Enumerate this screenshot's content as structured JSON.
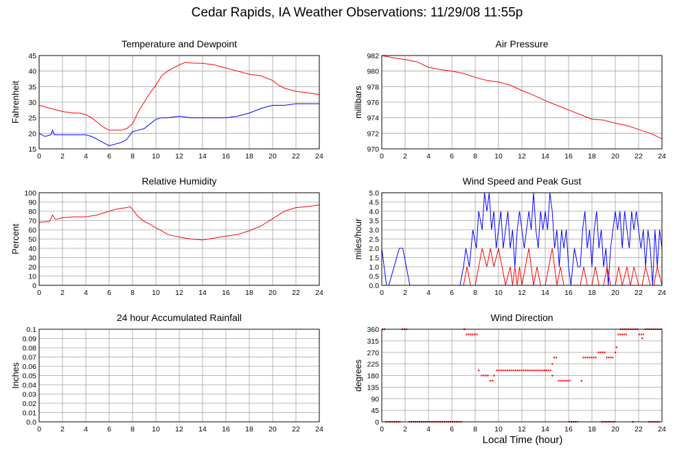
{
  "page": {
    "title": "Cedar Rapids, IA Weather Observations: 11/29/08 11:55p",
    "x_axis_title": "Local Time (hour)"
  },
  "colors": {
    "red": "#ff0000",
    "blue": "#0000ff",
    "grid": "#a0a0a0",
    "axis": "#000000"
  },
  "chart_data": [
    {
      "id": "temp",
      "type": "line",
      "title": "Temperature and Dewpoint",
      "ylabel": "Fahrenheit",
      "xlim": [
        0,
        24
      ],
      "ylim": [
        15,
        45
      ],
      "xticks": [
        0,
        2,
        4,
        6,
        8,
        10,
        12,
        14,
        16,
        18,
        20,
        22,
        24
      ],
      "yticks": [
        15,
        20,
        25,
        30,
        35,
        40,
        45
      ],
      "grid": true,
      "series": [
        {
          "color": "#ff0000",
          "x": [
            0,
            1,
            2,
            3,
            3.5,
            4,
            4.5,
            5,
            5.5,
            6,
            6.5,
            7,
            7.5,
            8,
            8.5,
            9,
            9.5,
            10,
            10.5,
            11,
            11.5,
            12,
            12.5,
            13,
            14,
            15,
            16,
            17,
            18,
            19,
            20,
            20.5,
            21,
            22,
            23,
            24
          ],
          "y": [
            29,
            28,
            27,
            26.5,
            26.5,
            26,
            25,
            23.5,
            22,
            21,
            21,
            21,
            21.5,
            23,
            27,
            30,
            33,
            35.5,
            38.5,
            40,
            41,
            42,
            42.8,
            42.6,
            42.5,
            42,
            41,
            40,
            39,
            38.5,
            37,
            35.5,
            34.5,
            33.5,
            33,
            32.5
          ]
        },
        {
          "color": "#0000ff",
          "x": [
            0,
            0.5,
            1,
            1.15,
            1.3,
            2,
            3,
            4,
            4.5,
            5,
            5.5,
            6,
            6.5,
            7,
            7.5,
            8,
            8.5,
            9,
            9.5,
            10,
            10.5,
            11,
            12,
            13,
            14,
            15,
            16,
            17,
            18,
            19,
            20,
            21,
            22,
            23,
            24
          ],
          "y": [
            20,
            19,
            19.5,
            21,
            19.5,
            19.5,
            19.5,
            19.5,
            19,
            18,
            17,
            16,
            16.5,
            17,
            18,
            20.5,
            21,
            21.5,
            23,
            24.5,
            25,
            25,
            25.5,
            25,
            25,
            25,
            25,
            25.5,
            26.5,
            28,
            29,
            29,
            29.5,
            29.5,
            29.5
          ]
        }
      ]
    },
    {
      "id": "pressure",
      "type": "line",
      "title": "Air Pressure",
      "ylabel": "millibars",
      "xlim": [
        0,
        24
      ],
      "ylim": [
        970,
        982
      ],
      "xticks": [
        0,
        2,
        4,
        6,
        8,
        10,
        12,
        14,
        16,
        18,
        20,
        22,
        24
      ],
      "yticks": [
        970,
        972,
        974,
        976,
        978,
        980,
        982
      ],
      "grid": true,
      "series": [
        {
          "color": "#ff0000",
          "x": [
            0,
            1,
            2,
            3,
            4,
            5,
            6,
            7,
            8,
            9,
            10,
            11,
            12,
            13,
            14,
            15,
            16,
            17,
            18,
            19,
            20,
            21,
            22,
            23,
            24
          ],
          "y": [
            982,
            981.7,
            981.5,
            981.2,
            980.5,
            980.2,
            980,
            979.7,
            979.2,
            978.8,
            978.6,
            978.2,
            977.5,
            976.9,
            976.2,
            975.6,
            975,
            974.4,
            973.8,
            973.7,
            973.3,
            973,
            972.5,
            972,
            971.3
          ]
        }
      ]
    },
    {
      "id": "humidity",
      "type": "line",
      "title": "Relative Humidity",
      "ylabel": "Percent",
      "xlim": [
        0,
        24
      ],
      "ylim": [
        0,
        100
      ],
      "xticks": [
        0,
        2,
        4,
        6,
        8,
        10,
        12,
        14,
        16,
        18,
        20,
        22,
        24
      ],
      "yticks": [
        0,
        10,
        20,
        30,
        40,
        50,
        60,
        70,
        80,
        90,
        100
      ],
      "grid": true,
      "series": [
        {
          "color": "#ff0000",
          "x": [
            0,
            0.9,
            1.15,
            1.4,
            2,
            3,
            4,
            5,
            6,
            6.5,
            7,
            7.5,
            7.8,
            8,
            8.5,
            9,
            9.5,
            10,
            10.5,
            11,
            12,
            13,
            14,
            15,
            16,
            17,
            18,
            19,
            20,
            21,
            22,
            23,
            24
          ],
          "y": [
            68,
            69,
            76,
            71,
            73,
            74,
            74,
            76,
            80,
            82,
            83,
            84,
            85,
            82,
            74,
            69,
            66,
            62,
            59,
            55,
            52,
            50,
            49,
            51,
            53,
            55,
            59,
            64,
            72,
            80,
            84,
            85,
            87
          ]
        }
      ]
    },
    {
      "id": "wind",
      "type": "line",
      "title": "Wind Speed and Peak Gust",
      "ylabel": "miles/hour",
      "xlim": [
        0,
        24
      ],
      "ylim": [
        0,
        5
      ],
      "xticks": [
        0,
        2,
        4,
        6,
        8,
        10,
        12,
        14,
        16,
        18,
        20,
        22,
        24
      ],
      "yticks": [
        0.0,
        0.5,
        1.0,
        1.5,
        2.0,
        2.5,
        3.0,
        3.5,
        4.0,
        4.5,
        5.0
      ],
      "grid": true,
      "series": [
        {
          "color": "#0000ff",
          "x": [
            0,
            0.2,
            0.4,
            0.6,
            1.5,
            1.8,
            2.1,
            2.4,
            6.7,
            7,
            7.2,
            7.5,
            7.8,
            8.1,
            8.3,
            8.6,
            8.8,
            9,
            9.2,
            9.4,
            9.6,
            9.8,
            10,
            10.2,
            10.4,
            10.6,
            10.8,
            11,
            11.2,
            11.4,
            11.6,
            11.8,
            12,
            12.2,
            12.4,
            12.6,
            12.8,
            13,
            13.2,
            13.4,
            13.6,
            13.8,
            14,
            14.2,
            14.4,
            14.6,
            14.8,
            15,
            15.2,
            15.4,
            15.6,
            15.8,
            16,
            16.2,
            16.5,
            16.8,
            17,
            17.2,
            17.4,
            17.6,
            17.8,
            18,
            18.2,
            18.4,
            18.6,
            18.8,
            19,
            19.2,
            19.4,
            19.6,
            19.8,
            20,
            20.2,
            20.4,
            20.6,
            20.8,
            21,
            21.2,
            21.4,
            21.6,
            21.8,
            22,
            22.2,
            22.4,
            22.6,
            22.8,
            23,
            23.2,
            23.4,
            23.6,
            23.8,
            24
          ],
          "y": [
            2,
            1,
            0,
            0,
            2,
            2,
            1,
            0,
            0,
            1,
            2,
            1,
            3,
            2,
            4,
            3,
            5,
            4,
            5,
            3,
            4,
            2,
            3,
            4,
            2,
            3,
            4,
            2,
            3,
            1,
            3,
            4,
            3,
            2,
            3,
            4,
            3,
            5,
            3,
            2,
            4,
            3,
            4,
            3,
            5,
            4,
            2,
            3,
            1,
            3,
            2,
            3,
            1,
            0,
            2,
            1,
            1,
            3,
            4,
            2,
            3,
            1,
            3,
            4,
            2,
            3,
            1,
            2,
            0,
            2,
            3,
            4,
            3,
            4,
            2,
            4,
            3,
            2,
            4,
            3,
            4,
            3,
            2,
            3,
            1,
            3,
            2,
            0,
            3,
            1,
            3,
            2
          ]
        },
        {
          "color": "#ff0000",
          "x": [
            7,
            7.3,
            7.6,
            8,
            8.3,
            8.6,
            9,
            9.3,
            9.6,
            10,
            10.3,
            10.6,
            11,
            11.2,
            11.4,
            11.6,
            11.8,
            12,
            12.3,
            12.6,
            13,
            13.3,
            13.6,
            14,
            14.3,
            14.6,
            15,
            15.3,
            15.6,
            16,
            16.3,
            17,
            17.3,
            17.6,
            18,
            18.3,
            18.6,
            19,
            19.3,
            19.6,
            20,
            20.3,
            20.6,
            21,
            21.3,
            21.6,
            22,
            22.3,
            22.6,
            23,
            23.3,
            23.6,
            24
          ],
          "y": [
            0,
            1,
            0,
            0,
            1,
            2,
            1,
            2,
            1,
            2,
            1,
            0,
            1,
            0,
            1,
            0,
            1,
            0,
            1,
            2,
            0,
            1,
            0,
            0,
            1,
            2,
            0,
            1,
            0,
            0,
            0,
            0,
            1,
            0,
            0,
            1,
            0,
            0,
            1,
            0,
            0,
            1,
            0,
            1,
            0,
            1,
            0,
            0,
            1,
            0,
            0,
            1,
            0
          ]
        }
      ]
    },
    {
      "id": "rain",
      "type": "line",
      "title": "24 hour Accumulated Rainfall",
      "ylabel": "Inches",
      "xlim": [
        0,
        24
      ],
      "ylim": [
        0,
        0.1
      ],
      "xticks": [
        0,
        2,
        4,
        6,
        8,
        10,
        12,
        14,
        16,
        18,
        20,
        22,
        24
      ],
      "yticks": [
        0.0,
        0.01,
        0.02,
        0.03,
        0.04,
        0.05,
        0.06,
        0.07,
        0.08,
        0.09,
        0.1
      ],
      "grid": true,
      "series": [
        {
          "color": "#ff0000",
          "x": [
            0,
            24
          ],
          "y": [
            0,
            0
          ]
        }
      ]
    },
    {
      "id": "direction",
      "type": "scatter",
      "title": "Wind Direction",
      "ylabel": "degrees",
      "xlim": [
        0,
        24
      ],
      "ylim": [
        0,
        360
      ],
      "xticks": [
        0,
        2,
        4,
        6,
        8,
        10,
        12,
        14,
        16,
        18,
        20,
        22,
        24
      ],
      "yticks": [
        0,
        45,
        90,
        135,
        180,
        225,
        270,
        315,
        360
      ],
      "grid": true,
      "segments": [
        {
          "x0": 0.0,
          "x1": 0.3,
          "y": 360
        },
        {
          "x0": 0.3,
          "x1": 1.6,
          "y": 0
        },
        {
          "x0": 1.7,
          "x1": 2.2,
          "y": 360
        },
        {
          "x0": 2.3,
          "x1": 6.9,
          "y": 0
        },
        {
          "x0": 7.0,
          "x1": 7.2,
          "y": 360
        },
        {
          "x0": 7.2,
          "x1": 8.2,
          "y": 340
        },
        {
          "x0": 8.5,
          "x1": 9.2,
          "y": 180
        },
        {
          "x0": 9.8,
          "x1": 14.5,
          "y": 200
        },
        {
          "x0": 14.7,
          "x1": 15.0,
          "y": 250
        },
        {
          "x0": 15.1,
          "x1": 16.2,
          "y": 160
        },
        {
          "x0": 16.0,
          "x1": 16.8,
          "y": 0
        },
        {
          "x0": 17.2,
          "x1": 18.4,
          "y": 250
        },
        {
          "x0": 18.5,
          "x1": 19.2,
          "y": 270
        },
        {
          "x0": 19.2,
          "x1": 19.9,
          "y": 250
        },
        {
          "x0": 18.8,
          "x1": 20.0,
          "y": 0
        },
        {
          "x0": 20.2,
          "x1": 21.0,
          "y": 340
        },
        {
          "x0": 20.4,
          "x1": 22.0,
          "y": 360
        },
        {
          "x0": 22.0,
          "x1": 22.5,
          "y": 340
        },
        {
          "x0": 22.5,
          "x1": 24.0,
          "y": 360
        },
        {
          "x0": 22.8,
          "x1": 23.8,
          "y": 0
        }
      ],
      "points": [
        {
          "x": 8.3,
          "y": 200
        },
        {
          "x": 9.3,
          "y": 160
        },
        {
          "x": 9.5,
          "y": 160
        },
        {
          "x": 9.6,
          "y": 180
        },
        {
          "x": 14.6,
          "y": 225
        },
        {
          "x": 14.6,
          "y": 180
        },
        {
          "x": 17.1,
          "y": 160
        },
        {
          "x": 20.0,
          "y": 270
        },
        {
          "x": 20.1,
          "y": 290
        },
        {
          "x": 21.5,
          "y": 0
        },
        {
          "x": 22.3,
          "y": 325
        }
      ]
    }
  ]
}
